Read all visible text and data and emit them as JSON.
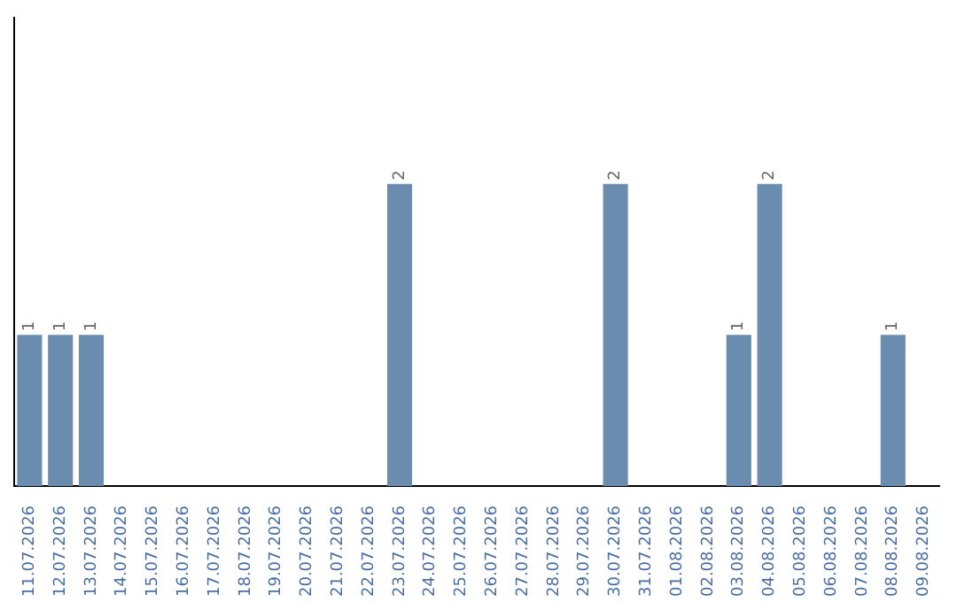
{
  "chart_data": {
    "type": "bar",
    "categories": [
      "11.07.2026",
      "12.07.2026",
      "13.07.2026",
      "14.07.2026",
      "15.07.2026",
      "16.07.2026",
      "17.07.2026",
      "18.07.2026",
      "19.07.2026",
      "20.07.2026",
      "21.07.2026",
      "22.07.2026",
      "23.07.2026",
      "24.07.2026",
      "25.07.2026",
      "26.07.2026",
      "27.07.2026",
      "28.07.2026",
      "29.07.2026",
      "30.07.2026",
      "31.07.2026",
      "01.08.2026",
      "02.08.2026",
      "03.08.2026",
      "04.08.2026",
      "05.08.2026",
      "06.08.2026",
      "07.08.2026",
      "08.08.2026",
      "09.08.2026"
    ],
    "values": [
      1,
      1,
      1,
      0,
      0,
      0,
      0,
      0,
      0,
      0,
      0,
      0,
      2,
      0,
      0,
      0,
      0,
      0,
      0,
      2,
      0,
      0,
      0,
      1,
      2,
      0,
      0,
      0,
      1,
      0
    ],
    "value_labels": [
      "1",
      "1",
      "1",
      null,
      null,
      null,
      null,
      null,
      null,
      null,
      null,
      null,
      "2",
      null,
      null,
      null,
      null,
      null,
      null,
      "2",
      null,
      null,
      null,
      "1",
      "2",
      null,
      null,
      null,
      "1",
      null
    ],
    "color": "#6a8caf",
    "ylim": [
      0,
      3.1
    ],
    "tick_labels": "x"
  }
}
